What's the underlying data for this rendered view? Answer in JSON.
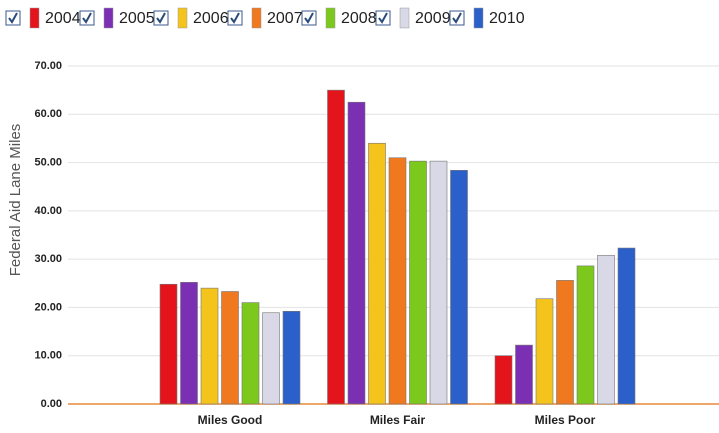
{
  "chart_data": {
    "type": "bar",
    "y_axis_label": "Federal Aid Lane Miles",
    "categories": [
      "Miles Good",
      "Miles Fair",
      "Miles Poor"
    ],
    "series": [
      {
        "name": "2004",
        "color": "#e3141c",
        "values": [
          24.8,
          65.0,
          10.0
        ]
      },
      {
        "name": "2005",
        "color": "#7b2fb3",
        "values": [
          25.2,
          62.5,
          12.2
        ]
      },
      {
        "name": "2006",
        "color": "#f4c41c",
        "values": [
          24.0,
          54.0,
          21.8
        ]
      },
      {
        "name": "2007",
        "color": "#f0781f",
        "values": [
          23.3,
          51.0,
          25.6
        ]
      },
      {
        "name": "2008",
        "color": "#7cc81c",
        "values": [
          21.0,
          50.3,
          28.6
        ]
      },
      {
        "name": "2009",
        "color": "#d8d8e6",
        "values": [
          18.9,
          50.3,
          30.8
        ]
      },
      {
        "name": "2010",
        "color": "#2b5fc9",
        "values": [
          19.2,
          48.4,
          32.3
        ]
      }
    ],
    "ylim": [
      0,
      70
    ],
    "yticks": [
      {
        "value": 0,
        "label": "0.00"
      },
      {
        "value": 10,
        "label": "10.00"
      },
      {
        "value": 20,
        "label": "20.00"
      },
      {
        "value": 30,
        "label": "30.00"
      },
      {
        "value": 40,
        "label": "40.00"
      },
      {
        "value": 50,
        "label": "50.00"
      },
      {
        "value": 60,
        "label": "60.00"
      },
      {
        "value": 70,
        "label": "70.00"
      }
    ],
    "grid": true,
    "legend": "top"
  }
}
